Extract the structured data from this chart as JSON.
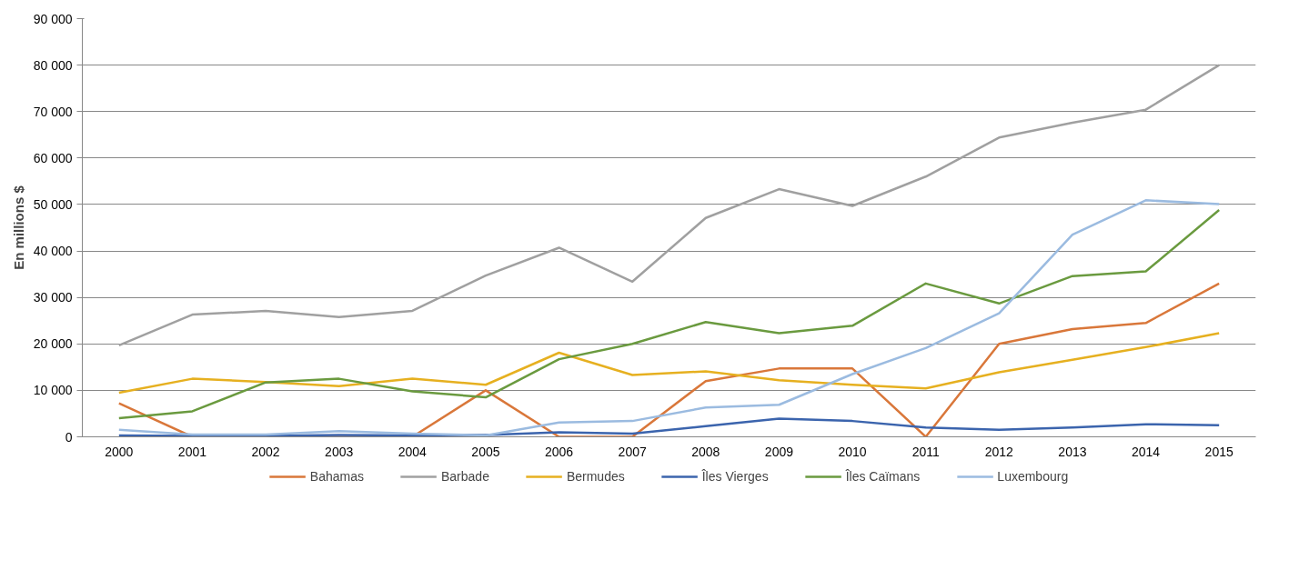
{
  "chart_data": {
    "type": "line",
    "ylabel": "En millions $",
    "categories": [
      "2000",
      "2001",
      "2002",
      "2003",
      "2004",
      "2005",
      "2006",
      "2007",
      "2008",
      "2009",
      "2010",
      "2011",
      "2012",
      "2013",
      "2014",
      "2015"
    ],
    "ylim": [
      0,
      90000
    ],
    "yticks": [
      {
        "value": 0,
        "label": "0"
      },
      {
        "value": 10000,
        "label": "10 000"
      },
      {
        "value": 20000,
        "label": "20 000"
      },
      {
        "value": 30000,
        "label": "30 000"
      },
      {
        "value": 40000,
        "label": "40 000"
      },
      {
        "value": 50000,
        "label": "50 000"
      },
      {
        "value": 60000,
        "label": "60 000"
      },
      {
        "value": 70000,
        "label": "70 000"
      },
      {
        "value": 80000,
        "label": "80 000"
      },
      {
        "value": 90000,
        "label": "90 000"
      }
    ],
    "grid": "y",
    "legend": "bottom",
    "marker": "none",
    "line_style": "solid",
    "series": [
      {
        "name": "Bahamas",
        "color": "#d9773a",
        "values": [
          7200,
          0,
          0,
          0,
          0,
          10000,
          0,
          0,
          12000,
          14700,
          14700,
          0,
          20000,
          23200,
          24500,
          33000
        ]
      },
      {
        "name": "Barbade",
        "color": "#a0a0a0",
        "values": [
          19700,
          26300,
          27100,
          25800,
          27100,
          34700,
          40700,
          33400,
          47100,
          53300,
          49700,
          56000,
          64400,
          67600,
          70400,
          80000
        ]
      },
      {
        "name": "Bermudes",
        "color": "#e6b020",
        "values": [
          9500,
          12500,
          11800,
          10900,
          12500,
          11200,
          18100,
          13300,
          14100,
          12200,
          11200,
          10400,
          13900,
          16600,
          19300,
          22300
        ]
      },
      {
        "name": "Îles Vierges",
        "color": "#3b64ad",
        "values": [
          300,
          200,
          200,
          400,
          300,
          400,
          1000,
          700,
          2300,
          3900,
          3400,
          2000,
          1500,
          2000,
          2700,
          2500
        ]
      },
      {
        "name": "Îles Caïmans",
        "color": "#6a9a3f",
        "values": [
          4000,
          5500,
          11700,
          12500,
          9800,
          8500,
          16700,
          20000,
          24700,
          22300,
          23900,
          33000,
          28700,
          34600,
          35600,
          48800
        ]
      },
      {
        "name": "Luxembourg",
        "color": "#9bbbe0",
        "values": [
          1500,
          500,
          500,
          1200,
          700,
          300,
          3100,
          3400,
          6300,
          6900,
          13500,
          19100,
          26600,
          43500,
          50900,
          50100
        ]
      }
    ]
  }
}
